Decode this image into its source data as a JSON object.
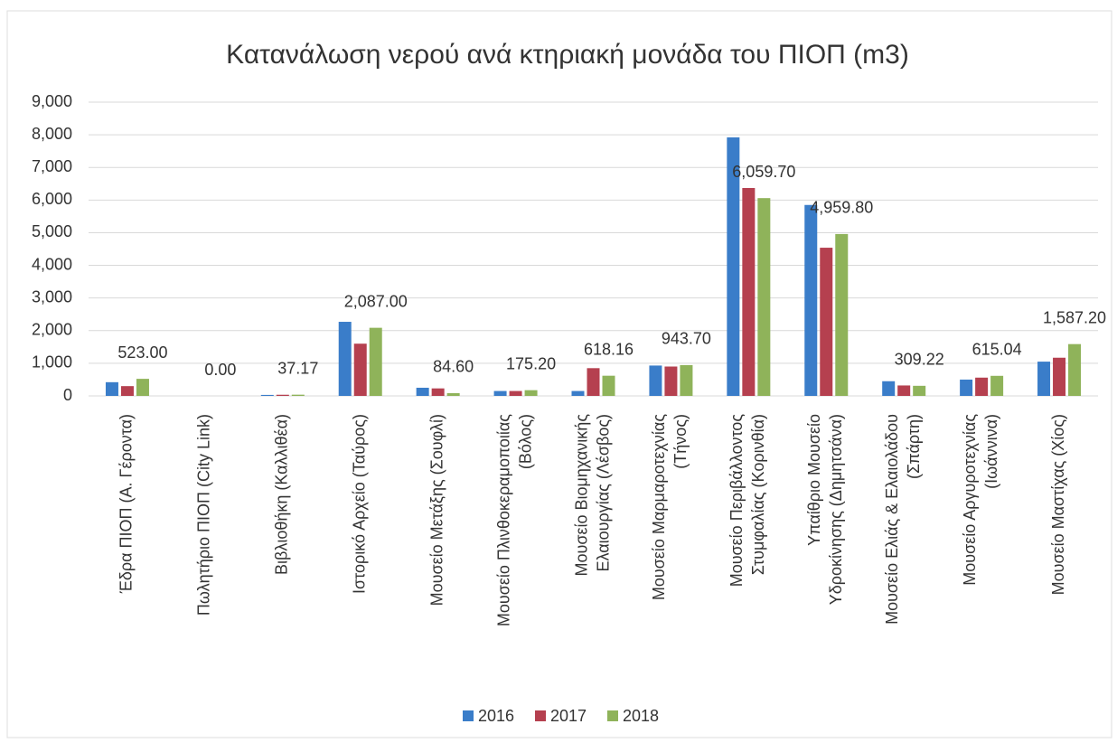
{
  "chart_data": {
    "type": "bar",
    "title": "Κατανάλωση νερού ανά κτηριακή μονάδα του ΠΙΟΠ (m3)",
    "categories": [
      [
        "Έδρα ΠΙΟΠ (Α. Γέροντα)"
      ],
      [
        "Πωλητήριο ΠΙΟΠ (City Link)"
      ],
      [
        "Βιβλιοθήκη (Καλλιθέα)"
      ],
      [
        "Ιστορικό Αρχείο (Ταύρος)"
      ],
      [
        "Μουσείο Μετάξης (Σουφλί)"
      ],
      [
        "Μουσείο Πλινθοκεραμοποιίας",
        "(Βόλος)"
      ],
      [
        "Μουσείο Βιομηχανικής",
        "Ελαιουργίας (Λέσβος)"
      ],
      [
        "Μουσείο Μαρμαροτεχνίας",
        "(Τήνος)"
      ],
      [
        "Μουσείο Περιβάλλοντος",
        "Στυμφαλίας (Κορινθία)"
      ],
      [
        "Υπαίθριο Μουσείο",
        "Υδροκίνησης (Δημητσάνα)"
      ],
      [
        "Μουσείο Ελιάς & Ελαιολάδου",
        "(Σπάρτη)"
      ],
      [
        "Μουσείο Αργυροτεχνίας",
        "(Ιωάννινα)"
      ],
      [
        "Μουσείο Μαστίχας (Χίος)"
      ]
    ],
    "series": [
      {
        "name": "2016",
        "color": "#3a7dc9",
        "values": [
          420,
          0,
          30,
          2270,
          250,
          150,
          150,
          930,
          7920,
          5850,
          450,
          500,
          1050
        ]
      },
      {
        "name": "2017",
        "color": "#b5404f",
        "values": [
          300,
          0,
          35,
          1600,
          230,
          150,
          850,
          900,
          6370,
          4540,
          320,
          560,
          1170
        ]
      },
      {
        "name": "2018",
        "color": "#8fb35a",
        "values": [
          523,
          0,
          37.17,
          2087,
          84.6,
          175.2,
          618.16,
          943.7,
          6059.7,
          4959.8,
          309.22,
          615.04,
          1587.2
        ],
        "value_labels": [
          "523.00",
          "0.00",
          "37.17",
          "2,087.00",
          "84.60",
          "175.20",
          "618.16",
          "943.70",
          "6,059.70",
          "4,959.80",
          "309.22",
          "615.04",
          "1,587.20"
        ]
      }
    ],
    "ylim": [
      0,
      9000
    ],
    "yticks": [
      0,
      {
        "value": 1000,
        "label": "1,000"
      },
      {
        "value": 2000,
        "label": "2,000"
      },
      {
        "value": 3000,
        "label": "3,000"
      },
      {
        "value": 4000,
        "label": "4,000"
      },
      {
        "value": 5000,
        "label": "5,000"
      },
      {
        "value": 6000,
        "label": "6,000"
      },
      {
        "value": 7000,
        "label": "7,000"
      },
      {
        "value": 8000,
        "label": "8,000"
      },
      {
        "value": 9000,
        "label": "9,000"
      }
    ],
    "grid": true,
    "legend": "bottom"
  }
}
